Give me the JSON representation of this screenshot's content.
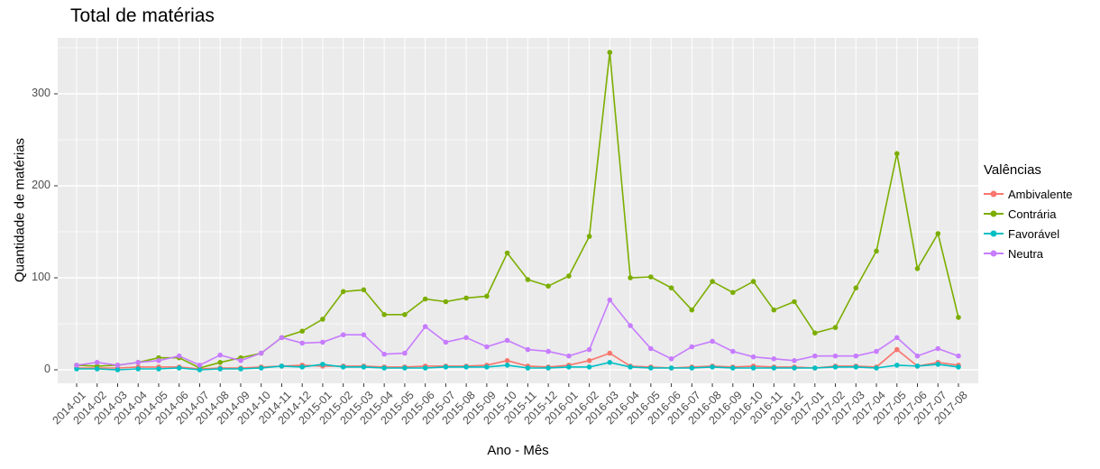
{
  "chart_data": {
    "type": "line",
    "title": "Total de matérias",
    "xlabel": "Ano - Mês",
    "ylabel": "Quantidade de matérias",
    "legend_title": "Valências",
    "legend_position": "right",
    "grid": true,
    "yticks": [
      0,
      100,
      200,
      300
    ],
    "ylim": [
      -15,
      360
    ],
    "categories": [
      "2014-01",
      "2014-02",
      "2014-03",
      "2014-04",
      "2014-05",
      "2014-06",
      "2014-07",
      "2014-08",
      "2014-09",
      "2014-10",
      "2014-11",
      "2014-12",
      "2015-01",
      "2015-02",
      "2015-03",
      "2015-04",
      "2015-05",
      "2015-06",
      "2015-07",
      "2015-08",
      "2015-09",
      "2015-10",
      "2015-11",
      "2015-12",
      "2016-01",
      "2016-02",
      "2016-03",
      "2016-04",
      "2016-05",
      "2016-06",
      "2016-07",
      "2016-08",
      "2016-09",
      "2016-10",
      "2016-11",
      "2016-12",
      "2017-01",
      "2017-02",
      "2017-03",
      "2017-04",
      "2017-05",
      "2017-06",
      "2017-07",
      "2017-08"
    ],
    "series": [
      {
        "name": "Ambivalente",
        "color": "#F8766D",
        "values": [
          2,
          2,
          2,
          3,
          3,
          3,
          1,
          2,
          2,
          3,
          4,
          5,
          4,
          4,
          4,
          3,
          3,
          4,
          4,
          4,
          5,
          10,
          4,
          3,
          5,
          10,
          18,
          4,
          3,
          2,
          3,
          4,
          3,
          4,
          3,
          3,
          2,
          4,
          4,
          3,
          22,
          4,
          8,
          5
        ]
      },
      {
        "name": "Contrária",
        "color": "#7CAE00",
        "values": [
          5,
          4,
          5,
          8,
          13,
          13,
          2,
          8,
          13,
          18,
          35,
          42,
          55,
          85,
          87,
          60,
          60,
          77,
          74,
          78,
          80,
          127,
          98,
          91,
          102,
          145,
          345,
          100,
          101,
          89,
          65,
          96,
          84,
          96,
          65,
          74,
          40,
          46,
          89,
          129,
          235,
          110,
          148,
          57
        ]
      },
      {
        "name": "Favorável",
        "color": "#00BFC4",
        "values": [
          1,
          1,
          0,
          1,
          1,
          2,
          0,
          1,
          1,
          2,
          4,
          3,
          6,
          3,
          3,
          2,
          2,
          2,
          3,
          3,
          3,
          5,
          2,
          2,
          3,
          3,
          8,
          3,
          2,
          2,
          2,
          3,
          2,
          2,
          2,
          2,
          2,
          3,
          3,
          2,
          5,
          4,
          6,
          3
        ]
      },
      {
        "name": "Neutra",
        "color": "#C77CFF",
        "values": [
          5,
          8,
          5,
          8,
          10,
          15,
          5,
          16,
          10,
          18,
          35,
          29,
          30,
          38,
          38,
          17,
          18,
          47,
          30,
          35,
          25,
          32,
          22,
          20,
          15,
          22,
          76,
          48,
          23,
          12,
          25,
          31,
          20,
          14,
          12,
          10,
          15,
          15,
          15,
          20,
          35,
          15,
          23,
          15
        ]
      }
    ]
  },
  "colors": {
    "panel_bg": "#EBEBEB",
    "grid": "#FFFFFF",
    "tick_text": "#4D4D4D",
    "axis_tick": "#333333"
  }
}
